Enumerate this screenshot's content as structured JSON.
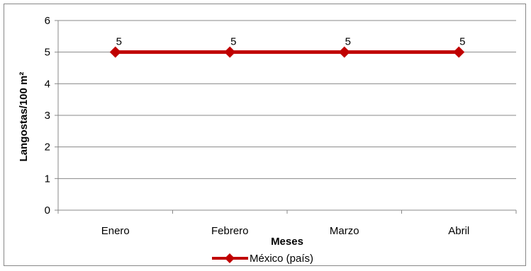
{
  "chart_data": {
    "type": "line",
    "categories": [
      "Enero",
      "Febrero",
      "Marzo",
      "Abril"
    ],
    "series": [
      {
        "name": "México (país)",
        "values": [
          5,
          5,
          5,
          5
        ],
        "color": "#C00000",
        "marker": "diamond"
      }
    ],
    "data_labels": [
      "5",
      "5",
      "5",
      "5"
    ],
    "xlabel": "Meses",
    "ylabel": "Langostas/100 m²",
    "ylim": [
      0,
      6
    ],
    "yticks": [
      0,
      1,
      2,
      3,
      4,
      5,
      6
    ],
    "grid": "horizontal",
    "legend_position": "bottom"
  }
}
